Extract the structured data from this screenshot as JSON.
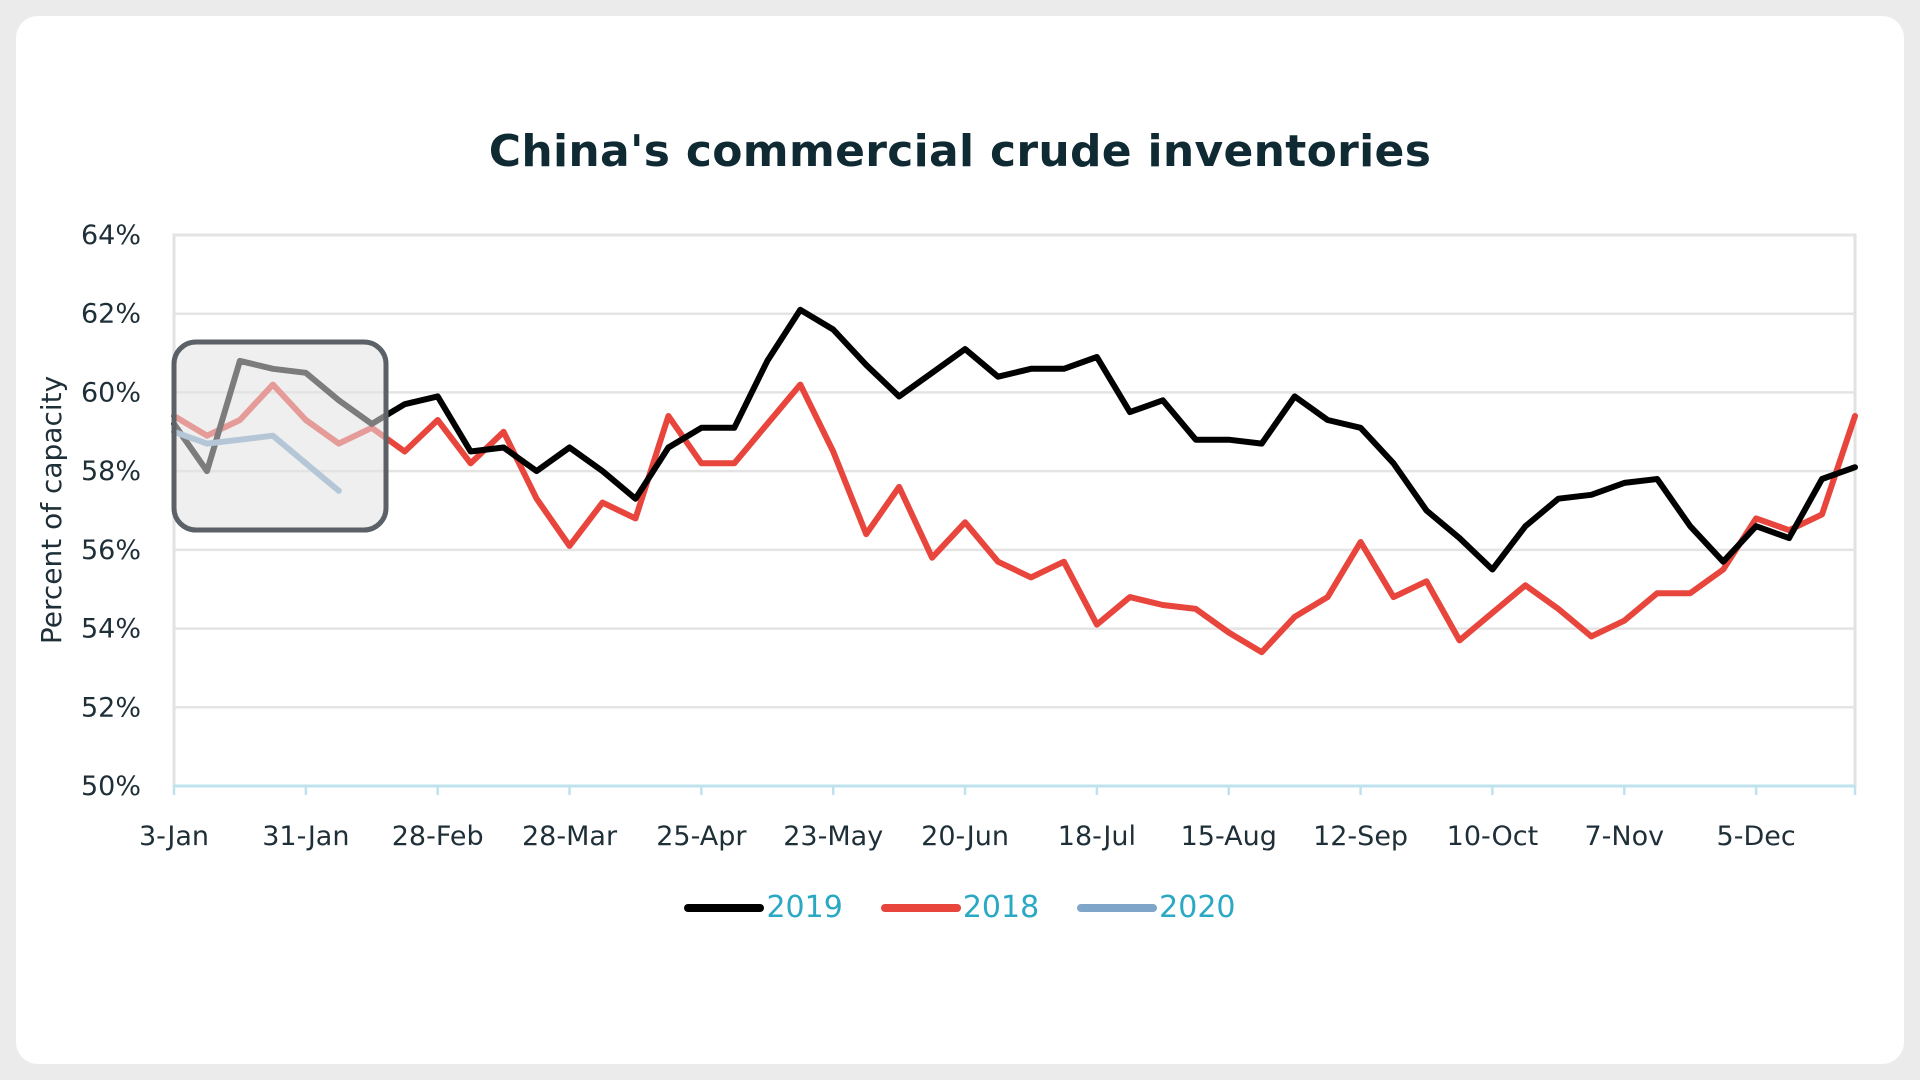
{
  "chart_data": {
    "type": "line",
    "title": "China's commercial crude inventories",
    "ylabel": "Percent of capacity",
    "xlabel": "",
    "ylim": [
      50,
      64
    ],
    "y_ticks": [
      "50%",
      "52%",
      "54%",
      "56%",
      "58%",
      "60%",
      "62%",
      "64%"
    ],
    "x_ticks": [
      "3-Jan",
      "31-Jan",
      "28-Feb",
      "28-Mar",
      "25-Apr",
      "23-May",
      "20-Jun",
      "18-Jul",
      "15-Aug",
      "12-Sep",
      "10-Oct",
      "7-Nov",
      "5-Dec"
    ],
    "grid": "horizontal",
    "legend_position": "bottom",
    "series": [
      {
        "name": "2019",
        "color": "#000000",
        "values": [
          59.2,
          58.0,
          60.8,
          60.6,
          60.5,
          59.8,
          59.2,
          59.7,
          59.9,
          58.5,
          58.6,
          58.0,
          58.6,
          58.0,
          57.3,
          58.6,
          59.1,
          59.1,
          60.8,
          62.1,
          61.6,
          60.7,
          59.9,
          60.5,
          61.1,
          60.4,
          60.6,
          60.6,
          60.9,
          59.5,
          59.8,
          58.8,
          58.8,
          58.7,
          59.9,
          59.3,
          59.1,
          58.2,
          57.0,
          56.3,
          55.5,
          56.6,
          57.3,
          57.4,
          57.7,
          57.8,
          56.6,
          55.7,
          56.6,
          56.3,
          57.8,
          58.1
        ]
      },
      {
        "name": "2018",
        "color": "#e8453c",
        "values": [
          59.4,
          58.9,
          59.3,
          60.2,
          59.3,
          58.7,
          59.1,
          58.5,
          59.3,
          58.2,
          59.0,
          57.3,
          56.1,
          57.2,
          56.8,
          59.4,
          58.2,
          58.2,
          59.2,
          60.2,
          58.5,
          56.4,
          57.6,
          55.8,
          56.7,
          55.7,
          55.3,
          55.7,
          54.1,
          54.8,
          54.6,
          54.5,
          53.9,
          53.4,
          54.3,
          54.8,
          56.2,
          54.8,
          55.2,
          53.7,
          54.4,
          55.1,
          54.5,
          53.8,
          54.2,
          54.9,
          54.9,
          55.5,
          56.8,
          56.5,
          56.9,
          59.4
        ]
      },
      {
        "name": "2020",
        "color": "#7fa6c9",
        "values": [
          59.0,
          58.7,
          58.8,
          58.9,
          58.2,
          57.5
        ]
      }
    ]
  }
}
